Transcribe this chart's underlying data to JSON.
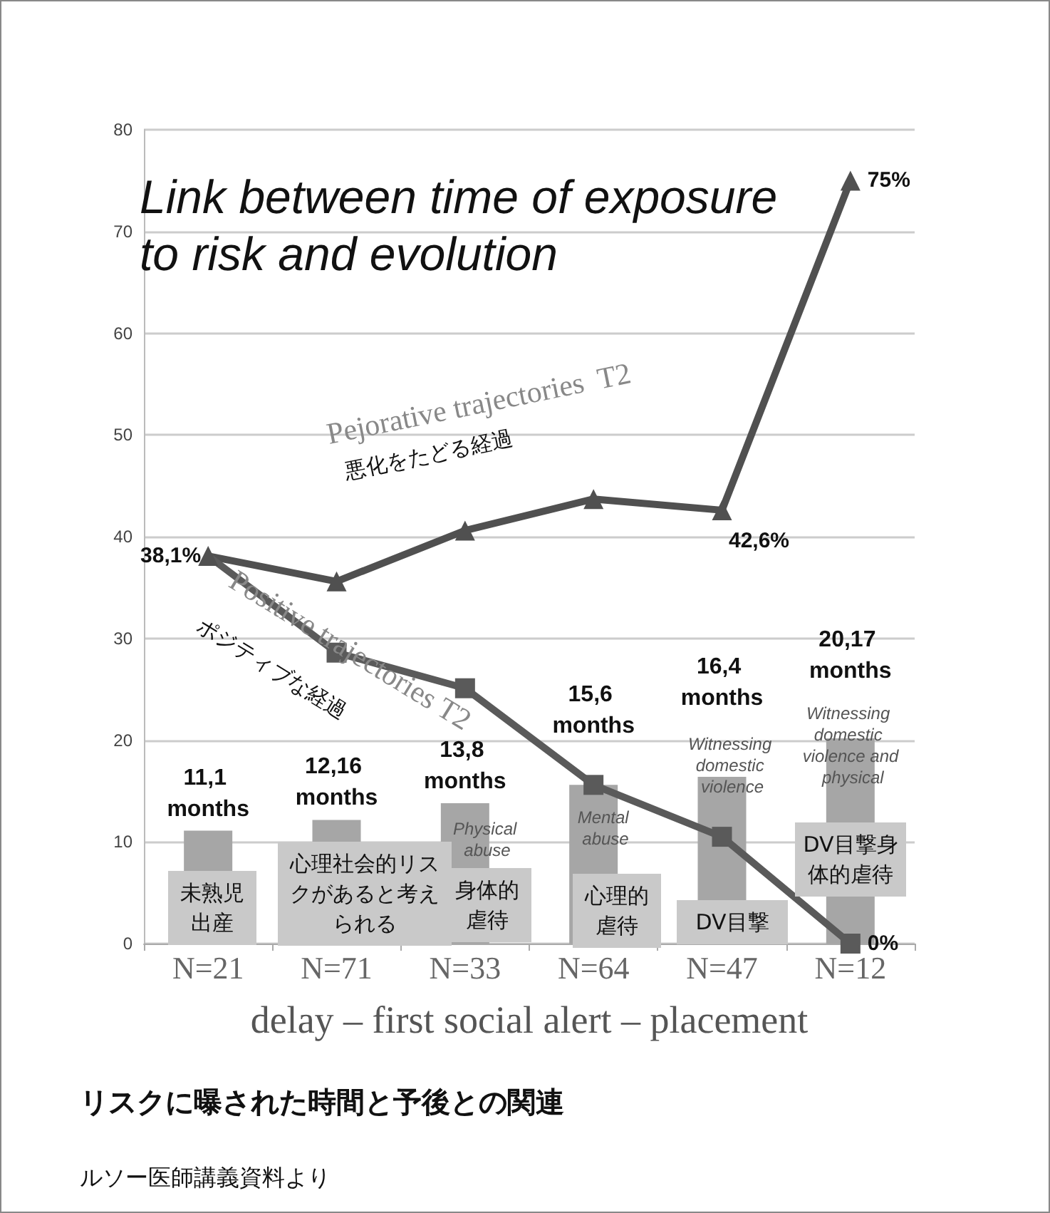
{
  "chart_data": {
    "type": "line",
    "title": "Link between time of exposure to risk and evolution",
    "subtitle": "リスクに曝された時間と予後との関連",
    "xlabel": "delay – first social alert – placement",
    "categories": [
      "N=21",
      "N=71",
      "N=33",
      "N=64",
      "N=47",
      "N=12"
    ],
    "series": [
      {
        "type": "bar",
        "color": "#a6a6a6",
        "values": [
          11.1,
          12.16,
          13.8,
          15.6,
          16.4,
          20.17
        ],
        "value_labels": [
          "11,1 months",
          "12,16 months",
          "13,8 months",
          "15,6 months",
          "16,4 months",
          "20,17 months"
        ]
      },
      {
        "color": "#505050",
        "marker": "triangle",
        "values": [
          38.1,
          35.6,
          40.6,
          43.7,
          42.6,
          75
        ],
        "value_labels": [
          null,
          null,
          null,
          null,
          "42,6%",
          "75%"
        ]
      },
      {
        "color": "#5a5a5a",
        "marker": "square",
        "values": [
          38.1,
          28.6,
          25.1,
          15.6,
          10.5,
          0
        ],
        "value_labels": [
          "38,1%",
          null,
          null,
          null,
          null,
          "0%"
        ]
      }
    ],
    "ylim": [
      0,
      80
    ],
    "yticks": [
      0,
      10,
      20,
      30,
      40,
      50,
      60,
      70,
      80
    ],
    "grid": "y",
    "annotations": [
      "Pejorative trajectories  T2",
      "悪化をたどる経過",
      "Positive trajectories T2",
      "ポジティブな経過",
      "Physical abuse",
      "Mental abuse",
      "Witnessing domestic violence",
      "Witnessing domestic violence and physical",
      "未熟児出産",
      "心理社会的リスクがあると考えられる",
      "身体的虐待",
      "心理的虐待",
      "DV目撃",
      "DV目撃身体的虐待",
      "ルソー医師講義資料より"
    ]
  }
}
